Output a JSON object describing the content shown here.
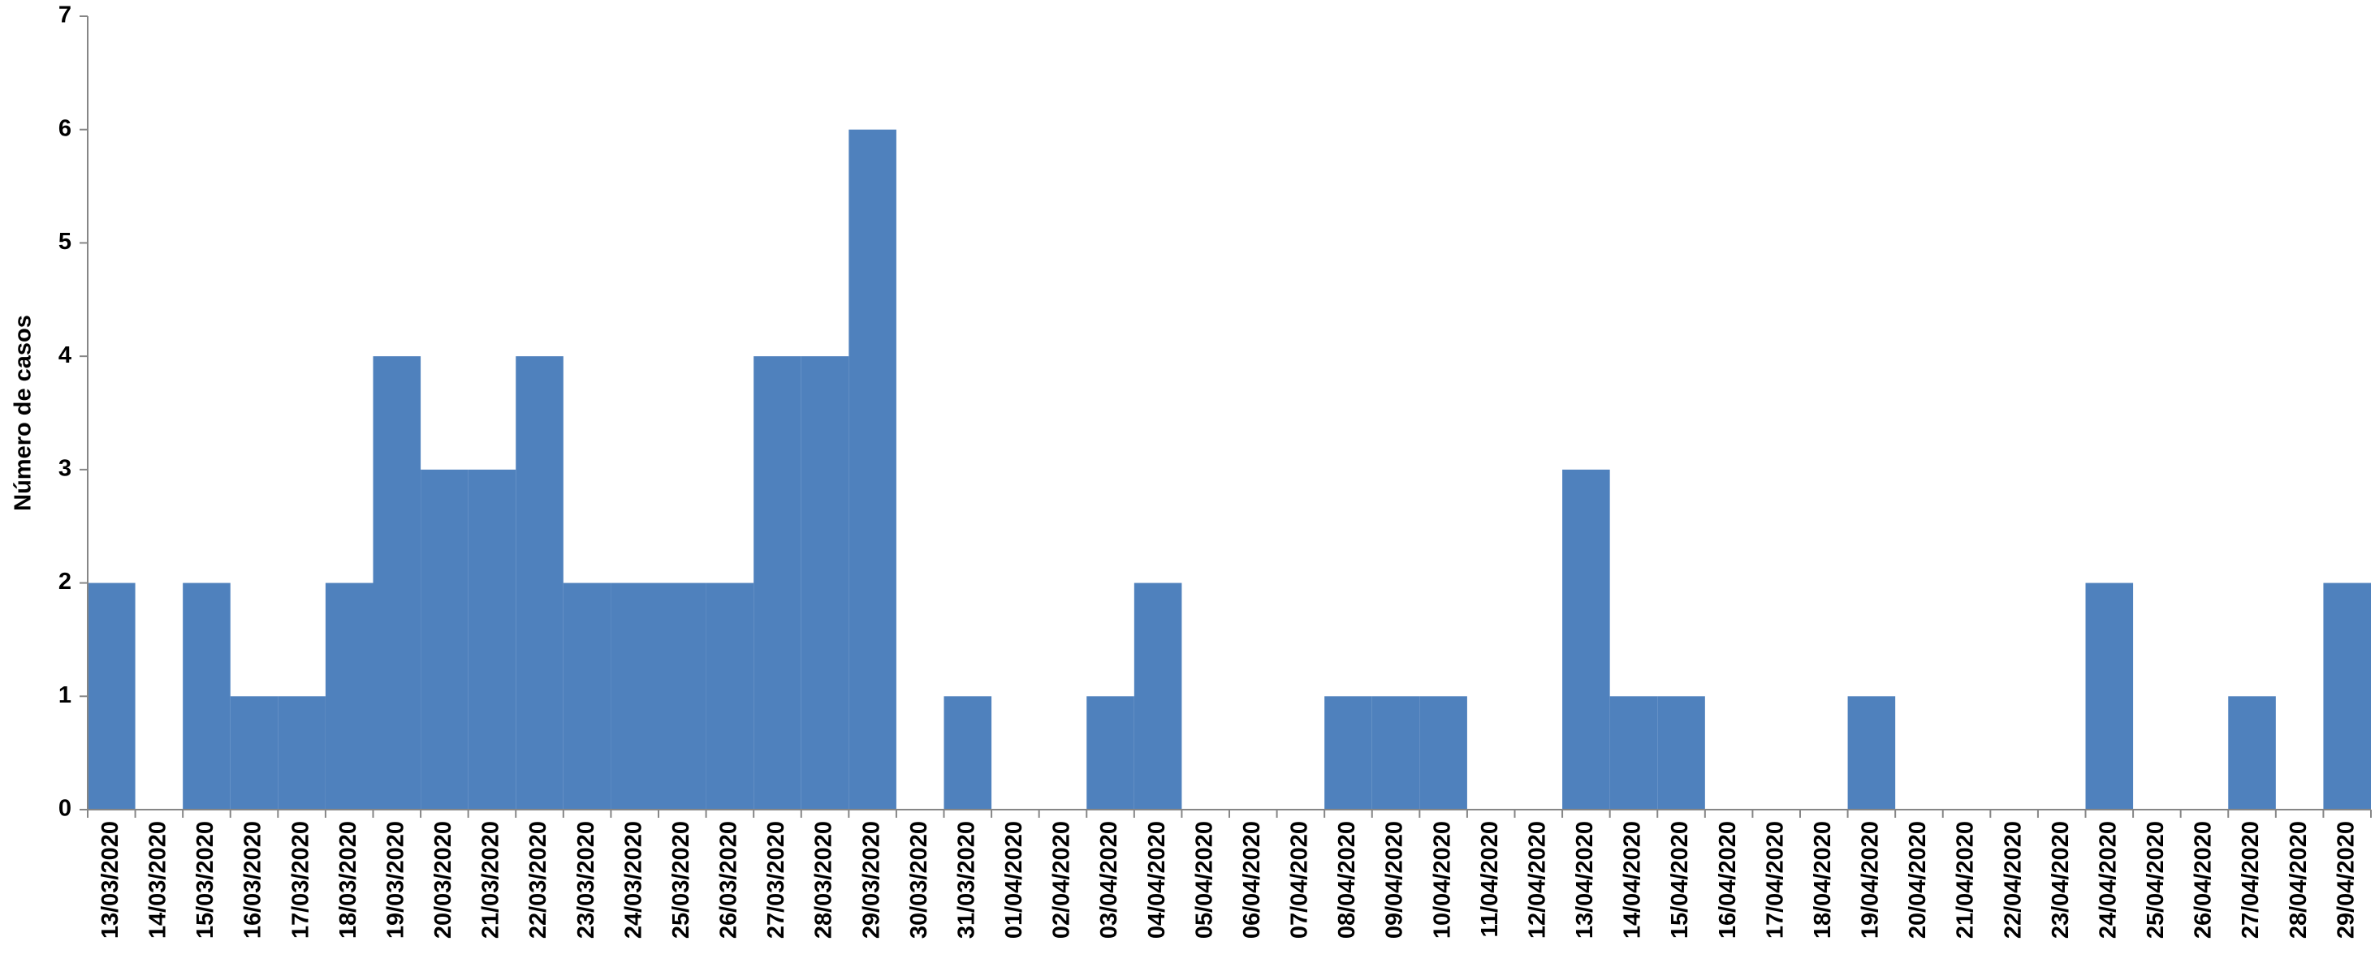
{
  "chart_data": {
    "type": "bar",
    "y_label": "Número de casos",
    "categories": [
      "13/03/2020",
      "14/03/2020",
      "15/03/2020",
      "16/03/2020",
      "17/03/2020",
      "18/03/2020",
      "19/03/2020",
      "20/03/2020",
      "21/03/2020",
      "22/03/2020",
      "23/03/2020",
      "24/03/2020",
      "25/03/2020",
      "26/03/2020",
      "27/03/2020",
      "28/03/2020",
      "29/03/2020",
      "30/03/2020",
      "31/03/2020",
      "01/04/2020",
      "02/04/2020",
      "03/04/2020",
      "04/04/2020",
      "05/04/2020",
      "06/04/2020",
      "07/04/2020",
      "08/04/2020",
      "09/04/2020",
      "10/04/2020",
      "11/04/2020",
      "12/04/2020",
      "13/04/2020",
      "14/04/2020",
      "15/04/2020",
      "16/04/2020",
      "17/04/2020",
      "18/04/2020",
      "19/04/2020",
      "20/04/2020",
      "21/04/2020",
      "22/04/2020",
      "23/04/2020",
      "24/04/2020",
      "25/04/2020",
      "26/04/2020",
      "27/04/2020",
      "28/04/2020",
      "29/04/2020"
    ],
    "values": [
      2,
      0,
      2,
      1,
      1,
      2,
      4,
      3,
      3,
      4,
      2,
      2,
      2,
      2,
      4,
      4,
      6,
      0,
      1,
      0,
      0,
      1,
      2,
      0,
      0,
      0,
      1,
      1,
      1,
      0,
      0,
      3,
      1,
      1,
      0,
      0,
      0,
      1,
      0,
      0,
      0,
      0,
      2,
      0,
      0,
      1,
      0,
      2
    ],
    "color": "#4f81bd",
    "ylim": [
      0,
      7
    ],
    "yticks": [
      0,
      1,
      2,
      3,
      4,
      5,
      6,
      7
    ],
    "grid": false
  }
}
